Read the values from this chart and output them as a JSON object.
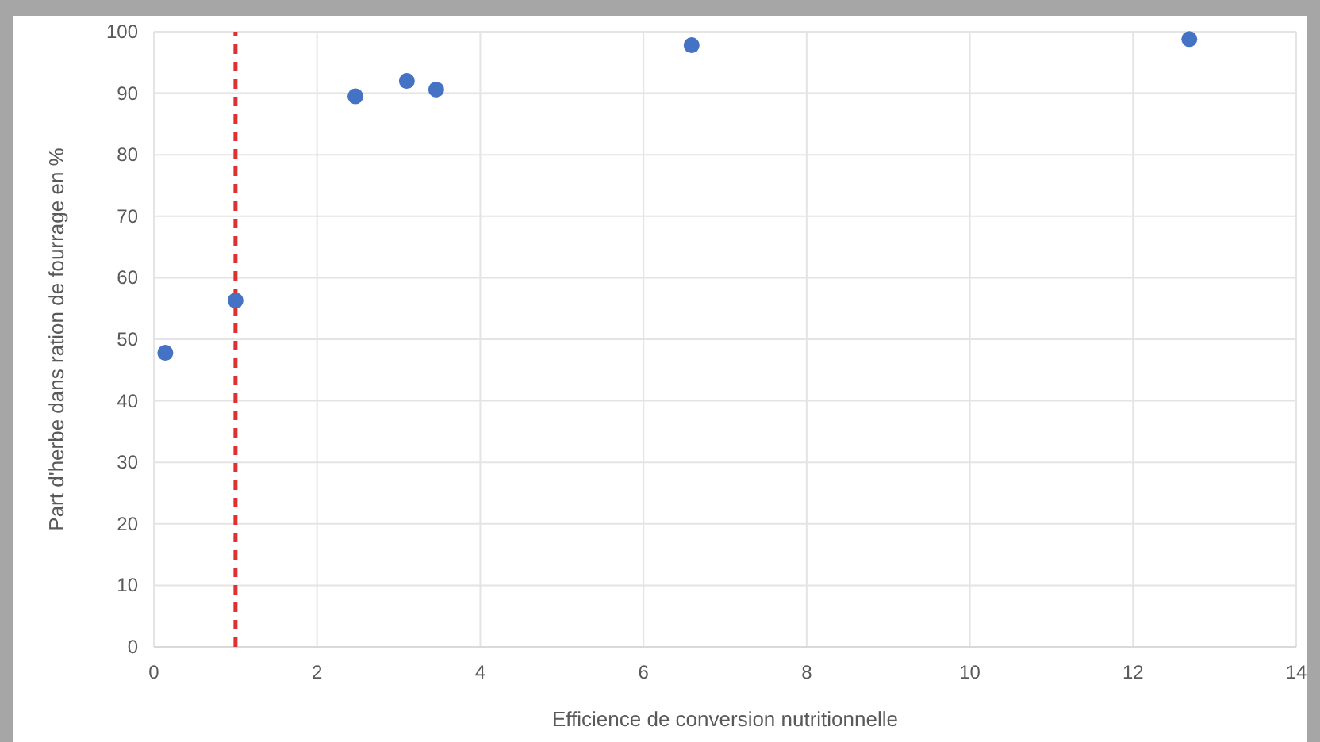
{
  "chart_data": {
    "type": "scatter",
    "xlabel": "Efficience de conversion nutritionnelle",
    "ylabel": "Part d'herbe dans ration de fourrage en %",
    "x": [
      0.14,
      1.0,
      2.47,
      3.1,
      3.46,
      6.59,
      12.69
    ],
    "series": [
      {
        "color": "#4472c4",
        "values": [
          47.8,
          56.3,
          89.5,
          92.0,
          90.6,
          97.8,
          98.8
        ]
      }
    ],
    "xlim": [
      0,
      14
    ],
    "xticks": [
      0,
      2,
      4,
      6,
      8,
      10,
      12,
      14
    ],
    "ylim": [
      0,
      100
    ],
    "yticks": [
      0,
      10,
      20,
      30,
      40,
      50,
      60,
      70,
      80,
      90,
      100
    ],
    "grid": true,
    "marker": "circle",
    "ref_lines": [
      {
        "axis": "x",
        "value": 1,
        "color": "#e03131",
        "line_style": "dashed"
      }
    ]
  }
}
